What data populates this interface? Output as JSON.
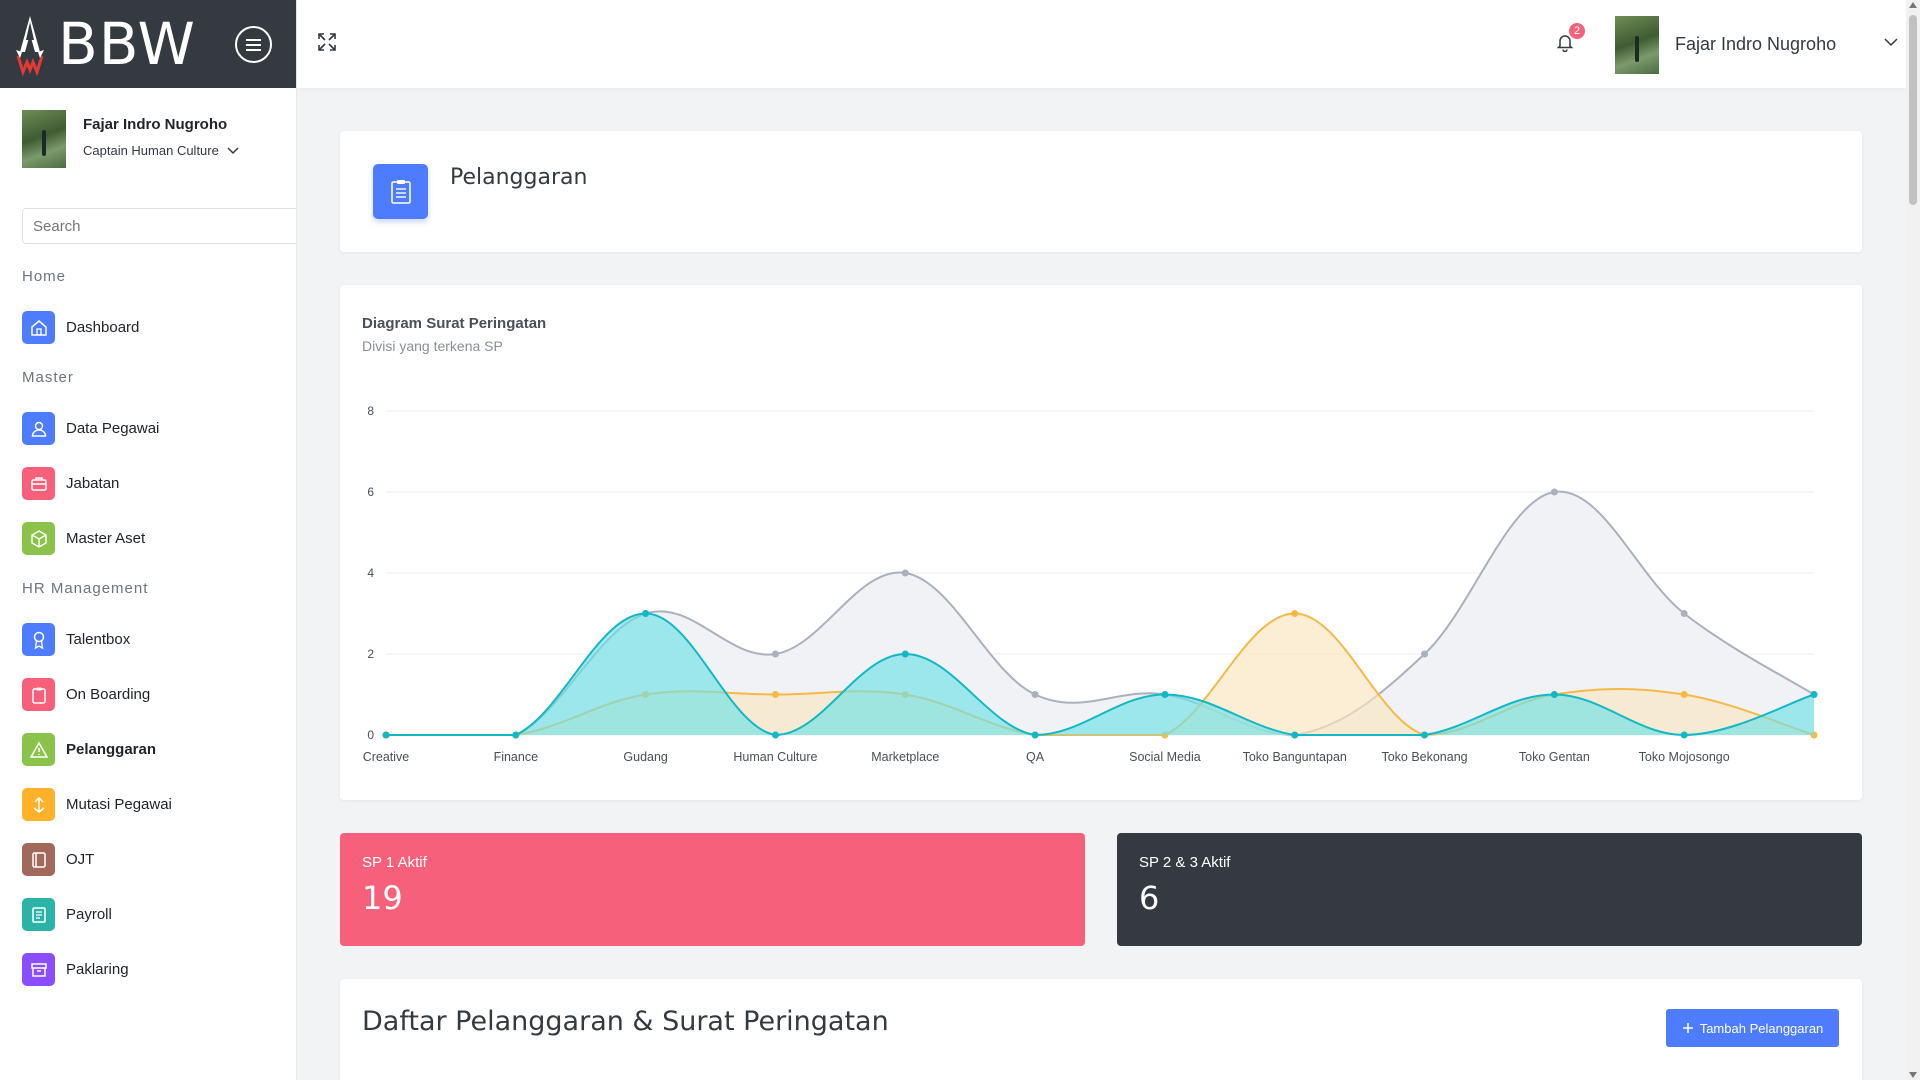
{
  "brand": {
    "name": "BBW"
  },
  "sidebar": {
    "profile": {
      "name": "Fajar Indro Nugroho",
      "role": "Captain Human Culture"
    },
    "search": {
      "placeholder": "Search"
    },
    "sections": [
      {
        "header": "Home",
        "items": [
          {
            "label": "Dashboard",
            "icon": "home-icon",
            "color": "#4d7cff"
          }
        ]
      },
      {
        "header": "Master",
        "items": [
          {
            "label": "Data Pegawai",
            "icon": "user-icon",
            "color": "#4d7cff"
          },
          {
            "label": "Jabatan",
            "icon": "briefcase-icon",
            "color": "#f7607a"
          },
          {
            "label": "Master Aset",
            "icon": "box-icon",
            "color": "#8bc34a"
          }
        ]
      },
      {
        "header": "HR Management",
        "items": [
          {
            "label": "Talentbox",
            "icon": "award-icon",
            "color": "#4d7cff"
          },
          {
            "label": "On Boarding",
            "icon": "clipboard-icon",
            "color": "#f7607a"
          },
          {
            "label": "Pelanggaran",
            "icon": "warning-icon",
            "color": "#8bc34a",
            "active": true
          },
          {
            "label": "Mutasi Pegawai",
            "icon": "transfer-icon",
            "color": "#ffb12a"
          },
          {
            "label": "OJT",
            "icon": "book-icon",
            "color": "#a1695a"
          },
          {
            "label": "Payroll",
            "icon": "document-icon",
            "color": "#2bb3a8"
          },
          {
            "label": "Paklaring",
            "icon": "archive-icon",
            "color": "#8a4dff"
          }
        ]
      }
    ]
  },
  "topbar": {
    "username": "Fajar Indro Nugroho",
    "notification_count": "2"
  },
  "page": {
    "title": "Pelanggaran"
  },
  "stats": {
    "sp1": {
      "label": "SP 1 Aktif",
      "value": "19",
      "color": "#f7607a"
    },
    "sp23": {
      "label": "SP 2 & 3 Aktif",
      "value": "6",
      "color": "#343a40"
    }
  },
  "list": {
    "title": "Daftar Pelanggaran & Surat Peringatan",
    "add_button": "Tambah Pelanggaran"
  },
  "chart_data": {
    "type": "area",
    "title": "Diagram Surat Peringatan",
    "subtitle": "Divisi yang terkena SP",
    "categories": [
      "Creative",
      "Finance",
      "Gudang",
      "Human Culture",
      "Marketplace",
      "QA",
      "Social Media",
      "Toko Banguntapan",
      "Toko Bekonang",
      "Toko Gentan",
      "Toko Mojosongo",
      ""
    ],
    "ylim": [
      0,
      8
    ],
    "yticks": [
      0,
      2,
      4,
      6,
      8
    ],
    "grid": true,
    "series": [
      {
        "values": [
          0,
          0,
          3,
          2,
          4,
          1,
          1,
          0,
          2,
          6,
          3,
          1
        ],
        "color": "#aab1bd",
        "fill": "#eef0f3"
      },
      {
        "values": [
          0,
          0,
          1,
          1,
          1,
          0,
          0,
          3,
          0,
          1,
          1,
          0
        ],
        "color": "#f5b945",
        "fill": "#fbe5bf"
      },
      {
        "values": [
          0,
          0,
          3,
          0,
          2,
          0,
          1,
          0,
          0,
          1,
          0,
          1
        ],
        "color": "#14b7c4",
        "fill": "#6fe0e6"
      }
    ]
  }
}
